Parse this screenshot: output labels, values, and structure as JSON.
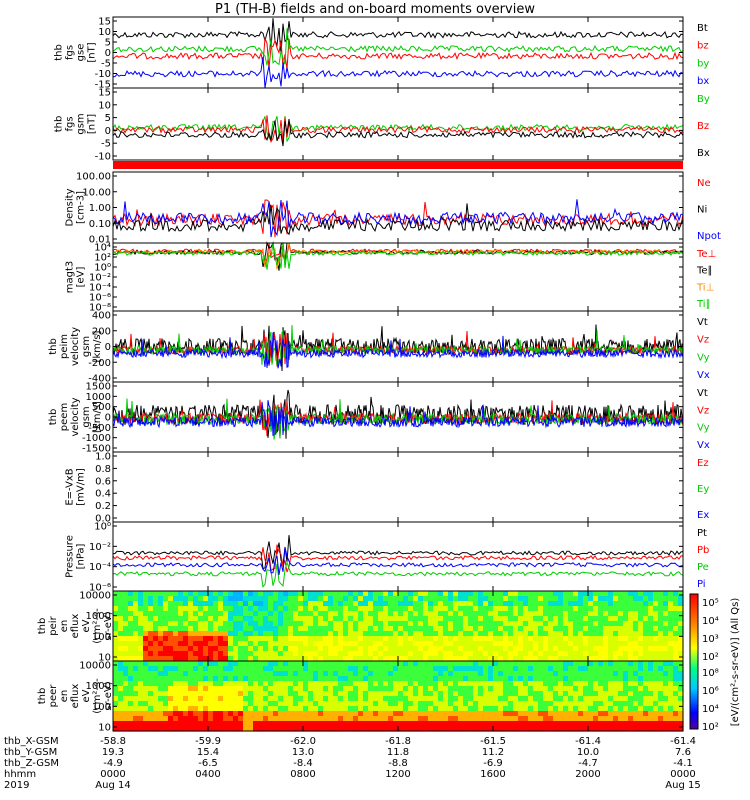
{
  "title": "P1 (TH-B) fields and on-board moments overview",
  "chart_data": [
    {
      "type": "line",
      "panel": "fgs_gse",
      "ylabel": [
        "thb",
        "fgs",
        "gse",
        "[nT]"
      ],
      "yticks": [
        "15",
        "10",
        "5",
        "0",
        "-5",
        "-10",
        "-15"
      ],
      "series": [
        {
          "name": "Bt",
          "color": "#000000"
        },
        {
          "name": "bz",
          "color": "#ff0000"
        },
        {
          "name": "by",
          "color": "#00cc00"
        },
        {
          "name": "bx",
          "color": "#0000ff"
        }
      ]
    },
    {
      "type": "line",
      "panel": "fgs_gsm",
      "ylabel": [
        "thb",
        "fgs",
        "gsm",
        "[nT]"
      ],
      "yticks": [
        "15",
        "10",
        "5",
        "0",
        "-5",
        "-10"
      ],
      "series": [
        {
          "name": "By",
          "color": "#00cc00"
        },
        {
          "name": "Bz",
          "color": "#ff0000"
        },
        {
          "name": "Bx",
          "color": "#000000"
        }
      ]
    },
    {
      "type": "line",
      "panel": "density",
      "ylabel": [
        "Density",
        "[cm-3]"
      ],
      "yticks": [
        "100.00",
        "10.00",
        "1.00",
        "0.10",
        "0.01"
      ],
      "scale": "log",
      "series": [
        {
          "name": "Ne",
          "color": "#ff0000"
        },
        {
          "name": "Ni",
          "color": "#000000"
        },
        {
          "name": "Npot",
          "color": "#0000ff"
        }
      ]
    },
    {
      "type": "line",
      "panel": "temperature",
      "ylabel": [
        "magt3",
        "[eV]"
      ],
      "yticks": [
        "10⁴",
        "10²",
        "10⁰",
        "10⁻²",
        "10⁻⁴",
        "10⁻⁶",
        "10⁻⁸"
      ],
      "scale": "log",
      "series": [
        {
          "name": "Te⊥",
          "color": "#ff0000"
        },
        {
          "name": "Te∥",
          "color": "#000000"
        },
        {
          "name": "Ti⊥",
          "color": "#ff8800"
        },
        {
          "name": "Ti∥",
          "color": "#00cc00"
        }
      ]
    },
    {
      "type": "line",
      "panel": "ion_velocity",
      "ylabel": [
        "thb",
        "peim",
        "velocity",
        "gsm",
        "[km/s]"
      ],
      "yticks": [
        "400",
        "200",
        "0",
        "-200",
        "-400"
      ],
      "series": [
        {
          "name": "Vt",
          "color": "#000000"
        },
        {
          "name": "Vz",
          "color": "#ff0000"
        },
        {
          "name": "Vy",
          "color": "#00cc00"
        },
        {
          "name": "Vx",
          "color": "#0000ff"
        }
      ]
    },
    {
      "type": "line",
      "panel": "electron_velocity",
      "ylabel": [
        "thb",
        "peem",
        "velocity",
        "gsm",
        "[km/s]"
      ],
      "yticks": [
        "1500",
        "1000",
        "500",
        "0",
        "-500",
        "-1000",
        "-1500"
      ],
      "series": [
        {
          "name": "Vt",
          "color": "#000000"
        },
        {
          "name": "Vz",
          "color": "#ff0000"
        },
        {
          "name": "Vy",
          "color": "#00cc00"
        },
        {
          "name": "Vx",
          "color": "#0000ff"
        }
      ]
    },
    {
      "type": "line",
      "panel": "efield",
      "ylabel": [
        "E=-VxB",
        "[mV/m]"
      ],
      "yticks": [
        "1.0",
        "0.8",
        "0.6",
        "0.4",
        "0.2",
        "0.0"
      ],
      "series": [
        {
          "name": "Ez",
          "color": "#ff0000"
        },
        {
          "name": "Ey",
          "color": "#00cc00"
        },
        {
          "name": "Ex",
          "color": "#0000ff"
        }
      ]
    },
    {
      "type": "line",
      "panel": "pressure",
      "ylabel": [
        "Pressure",
        "[nPa]"
      ],
      "yticks": [
        "10⁰",
        "10⁻²",
        "10⁻⁴",
        "10⁻⁶"
      ],
      "scale": "log",
      "series": [
        {
          "name": "Pt",
          "color": "#000000"
        },
        {
          "name": "Pb",
          "color": "#ff0000"
        },
        {
          "name": "Pe",
          "color": "#00cc00"
        },
        {
          "name": "Pi",
          "color": "#0000ff"
        }
      ]
    },
    {
      "type": "heatmap",
      "panel": "ion_spectrogram",
      "ylabel": [
        "thb",
        "peir",
        "en",
        "eflux",
        "eV",
        "(cm²-s-",
        "sr-eV)"
      ],
      "yticks": [
        "10000",
        "1000",
        "100",
        "10"
      ]
    },
    {
      "type": "heatmap",
      "panel": "electron_spectrogram",
      "ylabel": [
        "thb",
        "peer",
        "en",
        "eflux",
        "eV",
        "(cm²-s-",
        "sr-eV)"
      ],
      "yticks": [
        "10000",
        "1000",
        "100",
        "10"
      ]
    }
  ],
  "colorbar": {
    "label": "[eV/(cm²-s-sr-eV)]",
    "label2": "(All Qs)",
    "ticks_top": [
      "10⁵",
      "10⁴",
      "10³",
      "10²"
    ],
    "ticks_bottom": [
      "10⁸",
      "10⁶",
      "10⁴",
      "10²"
    ]
  },
  "xaxis": {
    "row_labels": [
      "thb_X-GSM",
      "thb_Y-GSM",
      "thb_Z-GSM",
      "hhmm",
      "2019"
    ],
    "columns": [
      {
        "x": "-58.8",
        "y": "19.3",
        "z": "-4.9",
        "hhmm": "0000",
        "date": "Aug 14"
      },
      {
        "x": "-59.9",
        "y": "15.4",
        "z": "-6.5",
        "hhmm": "0400",
        "date": ""
      },
      {
        "x": "-62.0",
        "y": "13.0",
        "z": "-8.4",
        "hhmm": "0800",
        "date": ""
      },
      {
        "x": "-61.8",
        "y": "11.8",
        "z": "-8.8",
        "hhmm": "1200",
        "date": ""
      },
      {
        "x": "-61.5",
        "y": "11.2",
        "z": "-6.9",
        "hhmm": "1600",
        "date": ""
      },
      {
        "x": "-61.4",
        "y": "10.0",
        "z": "-4.7",
        "hhmm": "2000",
        "date": ""
      },
      {
        "x": "-61.4",
        "y": "7.6",
        "z": "-4.1",
        "hhmm": "0000",
        "date": "Aug 15"
      }
    ]
  }
}
